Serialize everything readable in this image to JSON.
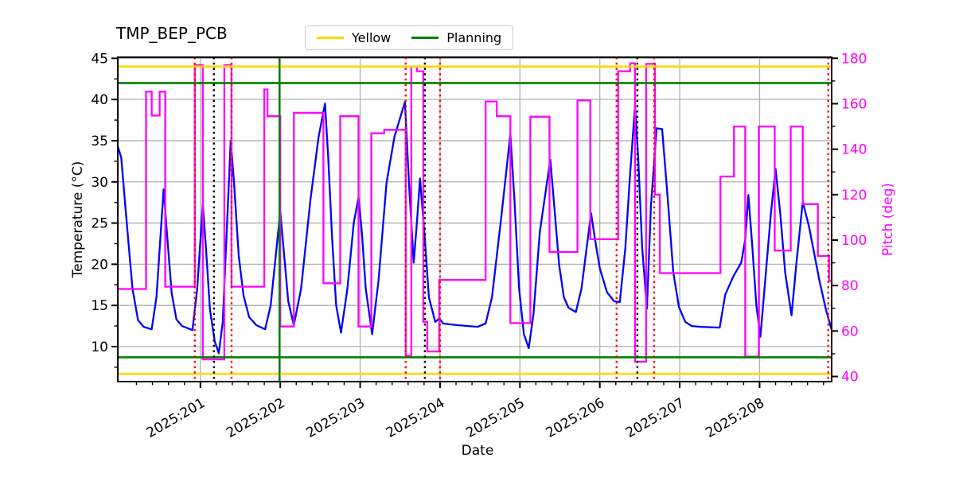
{
  "title": "TMP_BEP_PCB",
  "legend": {
    "items": [
      {
        "label": "Yellow",
        "color": "#ffd700"
      },
      {
        "label": "Planning",
        "color": "#008000"
      }
    ]
  },
  "axes": {
    "x": {
      "label": "Date",
      "lim": [
        199.966,
        208.902
      ],
      "tick_days": [
        201,
        202,
        203,
        204,
        205,
        206,
        207,
        208
      ],
      "tick_labels": [
        "2025:201",
        "2025:202",
        "2025:203",
        "2025:204",
        "2025:205",
        "2025:206",
        "2025:207",
        "2025:208"
      ],
      "minor_step": 0.2
    },
    "left": {
      "label": "Temperature (°C)",
      "lim": [
        5.75,
        45.13
      ],
      "ticks": [
        10,
        15,
        20,
        25,
        30,
        35,
        40,
        45
      ],
      "minor_step": 2.5,
      "color": "#000000"
    },
    "right": {
      "label": "Pitch (deg)",
      "lim": [
        37.75,
        180.45
      ],
      "ticks": [
        40,
        60,
        80,
        100,
        120,
        140,
        160,
        180
      ],
      "minor_step": 10,
      "color": "#ff00ff"
    }
  },
  "chart_data": {
    "type": "line",
    "title": "TMP_BEP_PCB",
    "xlabel": "Date",
    "x_unit": "year:day-of-year (2025:DDD, decimal days)",
    "grid": true,
    "legend_position": "top-center",
    "series": [
      {
        "name": "temperature",
        "axis": "left",
        "color": "#0000ff",
        "mode": "linear",
        "width": 2.3,
        "points": [
          [
            199.97,
            34.2
          ],
          [
            200.01,
            32.9
          ],
          [
            200.07,
            26
          ],
          [
            200.15,
            17
          ],
          [
            200.22,
            13.2
          ],
          [
            200.29,
            12.4
          ],
          [
            200.39,
            12.1
          ],
          [
            200.45,
            16
          ],
          [
            200.54,
            29.1
          ],
          [
            200.58,
            24
          ],
          [
            200.64,
            16.5
          ],
          [
            200.7,
            13.3
          ],
          [
            200.77,
            12.5
          ],
          [
            200.9,
            12.0
          ],
          [
            200.96,
            17
          ],
          [
            201.03,
            27.3
          ],
          [
            201.07,
            22
          ],
          [
            201.12,
            14.5
          ],
          [
            201.18,
            10.6
          ],
          [
            201.23,
            9.2
          ],
          [
            201.28,
            13
          ],
          [
            201.33,
            24
          ],
          [
            201.38,
            35.0
          ],
          [
            201.42,
            30
          ],
          [
            201.48,
            21
          ],
          [
            201.54,
            16.2
          ],
          [
            201.61,
            13.6
          ],
          [
            201.7,
            12.6
          ],
          [
            201.81,
            12.1
          ],
          [
            201.88,
            15
          ],
          [
            202.0,
            26.4
          ],
          [
            202.04,
            22
          ],
          [
            202.1,
            15.5
          ],
          [
            202.17,
            12.6
          ],
          [
            202.26,
            17
          ],
          [
            202.38,
            28
          ],
          [
            202.48,
            35.5
          ],
          [
            202.56,
            39.5
          ],
          [
            202.6,
            33
          ],
          [
            202.65,
            23
          ],
          [
            202.7,
            15
          ],
          [
            202.76,
            11.7
          ],
          [
            202.84,
            17
          ],
          [
            202.92,
            25
          ],
          [
            202.98,
            28.1
          ],
          [
            203.02,
            24
          ],
          [
            203.07,
            17
          ],
          [
            203.15,
            11.5
          ],
          [
            203.23,
            18
          ],
          [
            203.33,
            29.9
          ],
          [
            203.43,
            35.5
          ],
          [
            203.56,
            39.7
          ],
          [
            203.61,
            30
          ],
          [
            203.67,
            20.2
          ],
          [
            203.71,
            25
          ],
          [
            203.75,
            30.4
          ],
          [
            203.81,
            23
          ],
          [
            203.86,
            16
          ],
          [
            203.94,
            13.0
          ],
          [
            203.99,
            13.4
          ],
          [
            204.04,
            12.8
          ],
          [
            204.22,
            12.6
          ],
          [
            204.47,
            12.4
          ],
          [
            204.57,
            12.8
          ],
          [
            204.65,
            16
          ],
          [
            204.77,
            26
          ],
          [
            204.88,
            35.8
          ],
          [
            204.93,
            28
          ],
          [
            204.99,
            17
          ],
          [
            205.05,
            11.5
          ],
          [
            205.11,
            9.8
          ],
          [
            205.17,
            14
          ],
          [
            205.25,
            24
          ],
          [
            205.38,
            32.7
          ],
          [
            205.43,
            27
          ],
          [
            205.49,
            20
          ],
          [
            205.55,
            16
          ],
          [
            205.61,
            14.7
          ],
          [
            205.7,
            14.2
          ],
          [
            205.77,
            17
          ],
          [
            205.89,
            26.2
          ],
          [
            205.94,
            23
          ],
          [
            206.0,
            19.5
          ],
          [
            206.09,
            16.6
          ],
          [
            206.18,
            15.5
          ],
          [
            206.25,
            15.4
          ],
          [
            206.32,
            22
          ],
          [
            206.38,
            31
          ],
          [
            206.44,
            39.2
          ],
          [
            206.48,
            33
          ],
          [
            206.53,
            22
          ],
          [
            206.59,
            14.6
          ],
          [
            206.64,
            27
          ],
          [
            206.71,
            36.5
          ],
          [
            206.78,
            36.4
          ],
          [
            206.85,
            28
          ],
          [
            206.92,
            19
          ],
          [
            206.99,
            14.8
          ],
          [
            207.07,
            13.0
          ],
          [
            207.15,
            12.5
          ],
          [
            207.27,
            12.4
          ],
          [
            207.5,
            12.3
          ],
          [
            207.57,
            16.3
          ],
          [
            207.67,
            18.5
          ],
          [
            207.77,
            20.2
          ],
          [
            207.82,
            23
          ],
          [
            207.86,
            28.4
          ],
          [
            207.91,
            22
          ],
          [
            207.96,
            15
          ],
          [
            208.01,
            11.2
          ],
          [
            208.07,
            18
          ],
          [
            208.14,
            26
          ],
          [
            208.2,
            31.6
          ],
          [
            208.26,
            26
          ],
          [
            208.32,
            19
          ],
          [
            208.4,
            13.8
          ],
          [
            208.46,
            20
          ],
          [
            208.54,
            27.6
          ],
          [
            208.62,
            24.5
          ],
          [
            208.75,
            18
          ],
          [
            208.83,
            14.5
          ],
          [
            208.9,
            12.1
          ]
        ]
      },
      {
        "name": "pitch",
        "axis": "right",
        "color": "#ff00ff",
        "mode": "step",
        "width": 2.3,
        "points": [
          [
            199.97,
            78.5
          ],
          [
            200.32,
            165.3
          ],
          [
            200.39,
            154.8
          ],
          [
            200.49,
            165.3
          ],
          [
            200.56,
            79.5
          ],
          [
            200.93,
            177
          ],
          [
            201.03,
            47.5
          ],
          [
            201.3,
            177
          ],
          [
            201.39,
            79.5
          ],
          [
            201.8,
            166.3
          ],
          [
            201.84,
            154.5
          ],
          [
            202.0,
            62
          ],
          [
            202.17,
            156
          ],
          [
            202.54,
            81
          ],
          [
            202.75,
            154.5
          ],
          [
            202.98,
            62
          ],
          [
            203.14,
            147
          ],
          [
            203.3,
            148.5
          ],
          [
            203.57,
            49
          ],
          [
            203.64,
            176.4
          ],
          [
            203.71,
            174.3
          ],
          [
            203.79,
            64
          ],
          [
            203.84,
            51
          ],
          [
            203.99,
            82.5
          ],
          [
            204.57,
            161
          ],
          [
            204.71,
            154.5
          ],
          [
            204.88,
            63.5
          ],
          [
            205.13,
            154.3
          ],
          [
            205.37,
            94.8
          ],
          [
            205.72,
            161.5
          ],
          [
            205.88,
            100.4
          ],
          [
            206.23,
            174.3
          ],
          [
            206.38,
            177.8
          ],
          [
            206.44,
            46.5
          ],
          [
            206.58,
            177.5
          ],
          [
            206.69,
            120
          ],
          [
            206.75,
            85.5
          ],
          [
            207.51,
            128
          ],
          [
            207.68,
            150
          ],
          [
            207.82,
            48.7
          ],
          [
            207.99,
            150
          ],
          [
            208.19,
            95.4
          ],
          [
            208.39,
            150
          ],
          [
            208.54,
            115.8
          ],
          [
            208.73,
            93
          ],
          [
            208.87,
            82
          ]
        ]
      }
    ],
    "hlines": [
      {
        "y": 44.0,
        "axis": "left",
        "color": "#ffd700",
        "style": "solid",
        "label": "Yellow"
      },
      {
        "y": 6.7,
        "axis": "left",
        "color": "#ffd700",
        "style": "solid",
        "label": "Yellow"
      },
      {
        "y": 42.0,
        "axis": "left",
        "color": "#008000",
        "style": "solid",
        "label": "Planning"
      },
      {
        "y": 8.7,
        "axis": "left",
        "color": "#008000",
        "style": "solid",
        "label": "Planning"
      }
    ],
    "vlines": [
      {
        "x": 200.93,
        "color": "#ff0000",
        "style": "dotted"
      },
      {
        "x": 201.17,
        "color": "#000000",
        "style": "dotted"
      },
      {
        "x": 201.39,
        "color": "#ff0000",
        "style": "dotted"
      },
      {
        "x": 201.99,
        "color": "#008000",
        "style": "solid"
      },
      {
        "x": 203.57,
        "color": "#ff0000",
        "style": "dotted"
      },
      {
        "x": 203.81,
        "color": "#000000",
        "style": "dotted"
      },
      {
        "x": 204.0,
        "color": "#ff0000",
        "style": "dotted"
      },
      {
        "x": 206.21,
        "color": "#ff0000",
        "style": "dotted"
      },
      {
        "x": 206.47,
        "color": "#000000",
        "style": "dotted"
      },
      {
        "x": 206.68,
        "color": "#ff0000",
        "style": "dotted"
      },
      {
        "x": 208.86,
        "color": "#ff0000",
        "style": "dotted"
      }
    ]
  },
  "style": {
    "grid_color": "#b0b0b0",
    "spine_color": "#000000",
    "background": "#ffffff"
  }
}
